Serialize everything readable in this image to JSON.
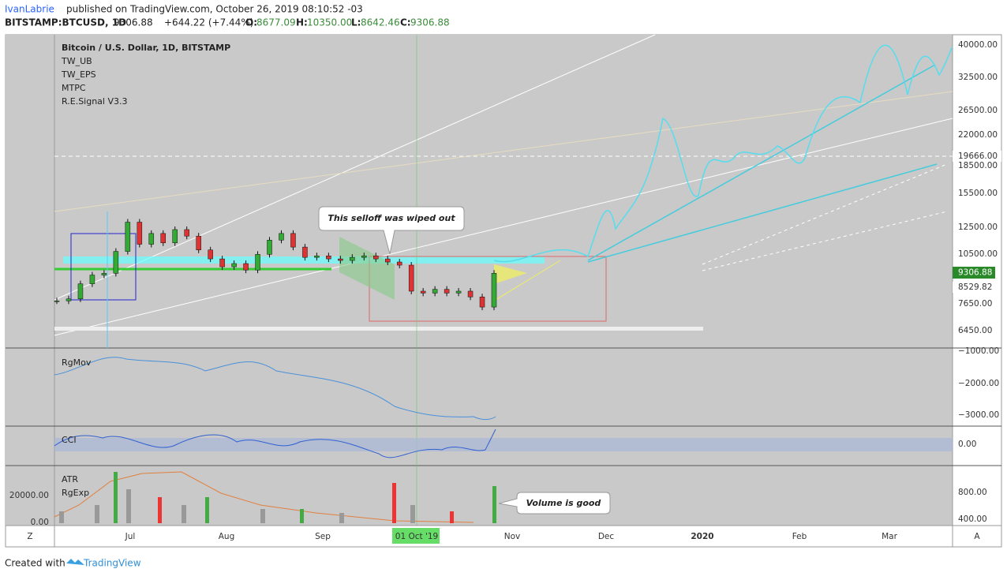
{
  "header": {
    "author": "IvanLabrie",
    "published": "published on TradingView.com, October 26, 2019 08:10:52 -03",
    "symbol": "BITSTAMP:BTCUSD, 1D",
    "last": "9306.88",
    "change": "+644.22 (+7.44%)",
    "o_label": "O:",
    "o": "8677.09",
    "h_label": "H:",
    "h": "10350.00",
    "l_label": "L:",
    "l": "8642.46",
    "c_label": "C:",
    "c": "9306.88"
  },
  "legend": [
    "Bitcoin / U.S. Dollar, 1D, BITSTAMP",
    "TW_UB",
    "TW_EPS",
    "MTPC",
    "R.E.Signal V3.3"
  ],
  "annotations": [
    "This selloff was wiped out",
    "Volume is good"
  ],
  "price_axis": [
    "40000.00",
    "32500.00",
    "26500.00",
    "22000.00",
    "18500.00",
    "15500.00",
    "12500.00",
    "10500.00",
    "7650.00",
    "6450.00"
  ],
  "price_labels": [
    "19666.00",
    "9306.88",
    "8529.82"
  ],
  "closes": [
    7800,
    7900,
    8700,
    9200,
    9300,
    10700,
    12900,
    11200,
    12000,
    11300,
    12300,
    11800,
    10800,
    10200,
    9700,
    9900,
    9500,
    10500,
    11500,
    12000,
    11000,
    10300,
    10400,
    10200,
    10100,
    10300,
    10400,
    10200,
    10000,
    9800,
    8300,
    8200,
    8400,
    8200,
    8300,
    8000,
    7500,
    9306.88
  ],
  "x_axis": [
    "Jul",
    "Aug",
    "Sep",
    "01 Oct '19",
    "Nov",
    "Dec",
    "2020",
    "Feb",
    "Mar"
  ],
  "panes": {
    "rgmov": {
      "name": "RgMov",
      "ticks": [
        "−1000.00",
        "−2000.00",
        "−3000.00"
      ]
    },
    "cci": {
      "name": "CCI",
      "ticks": [
        "0.00"
      ]
    },
    "atr": {
      "names": [
        "ATR",
        "RgExp"
      ],
      "left_ticks": [
        "20000.00",
        "0.00"
      ],
      "right_ticks": [
        "800.00",
        "400.00"
      ]
    }
  },
  "corner_buttons": [
    "Z",
    "A"
  ],
  "footer": {
    "created_with": "Created with",
    "brand": "TradingView"
  }
}
